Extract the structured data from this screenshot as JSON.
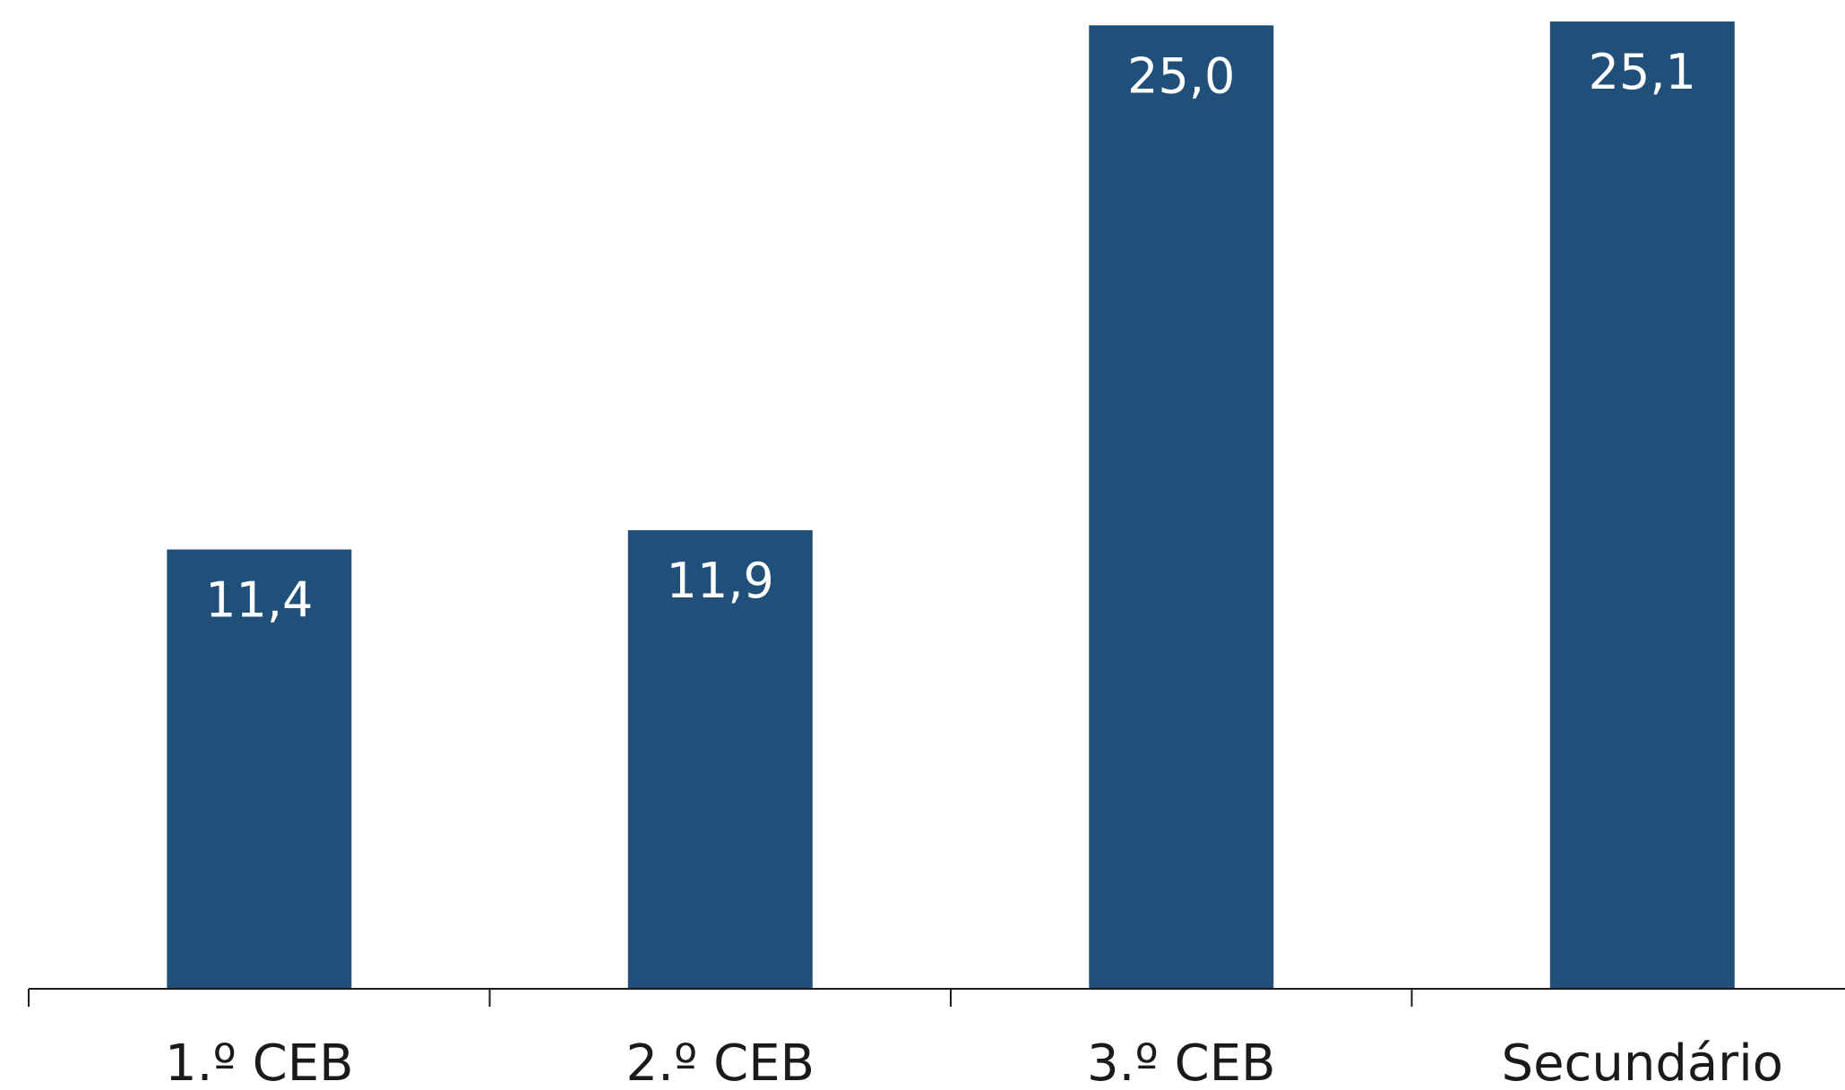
{
  "colors": {
    "bar": "#204f79",
    "axis": "#1a1a1a",
    "label_inside": "#ffffff",
    "text": "#1a1a1a",
    "background": "#ffffff"
  },
  "chart_data": {
    "type": "bar",
    "title": "",
    "xlabel": "",
    "ylabel": "",
    "categories": [
      "1.º CEB",
      "2.º CEB",
      "3.º CEB",
      "Secundário"
    ],
    "values": [
      11.4,
      11.9,
      25.0,
      25.1
    ],
    "value_labels": [
      "11,4",
      "11,9",
      "25,0",
      "25,1"
    ],
    "ylim": [
      0,
      25.1
    ],
    "grid": false,
    "legend": "none",
    "data_labels": "inside-top"
  }
}
